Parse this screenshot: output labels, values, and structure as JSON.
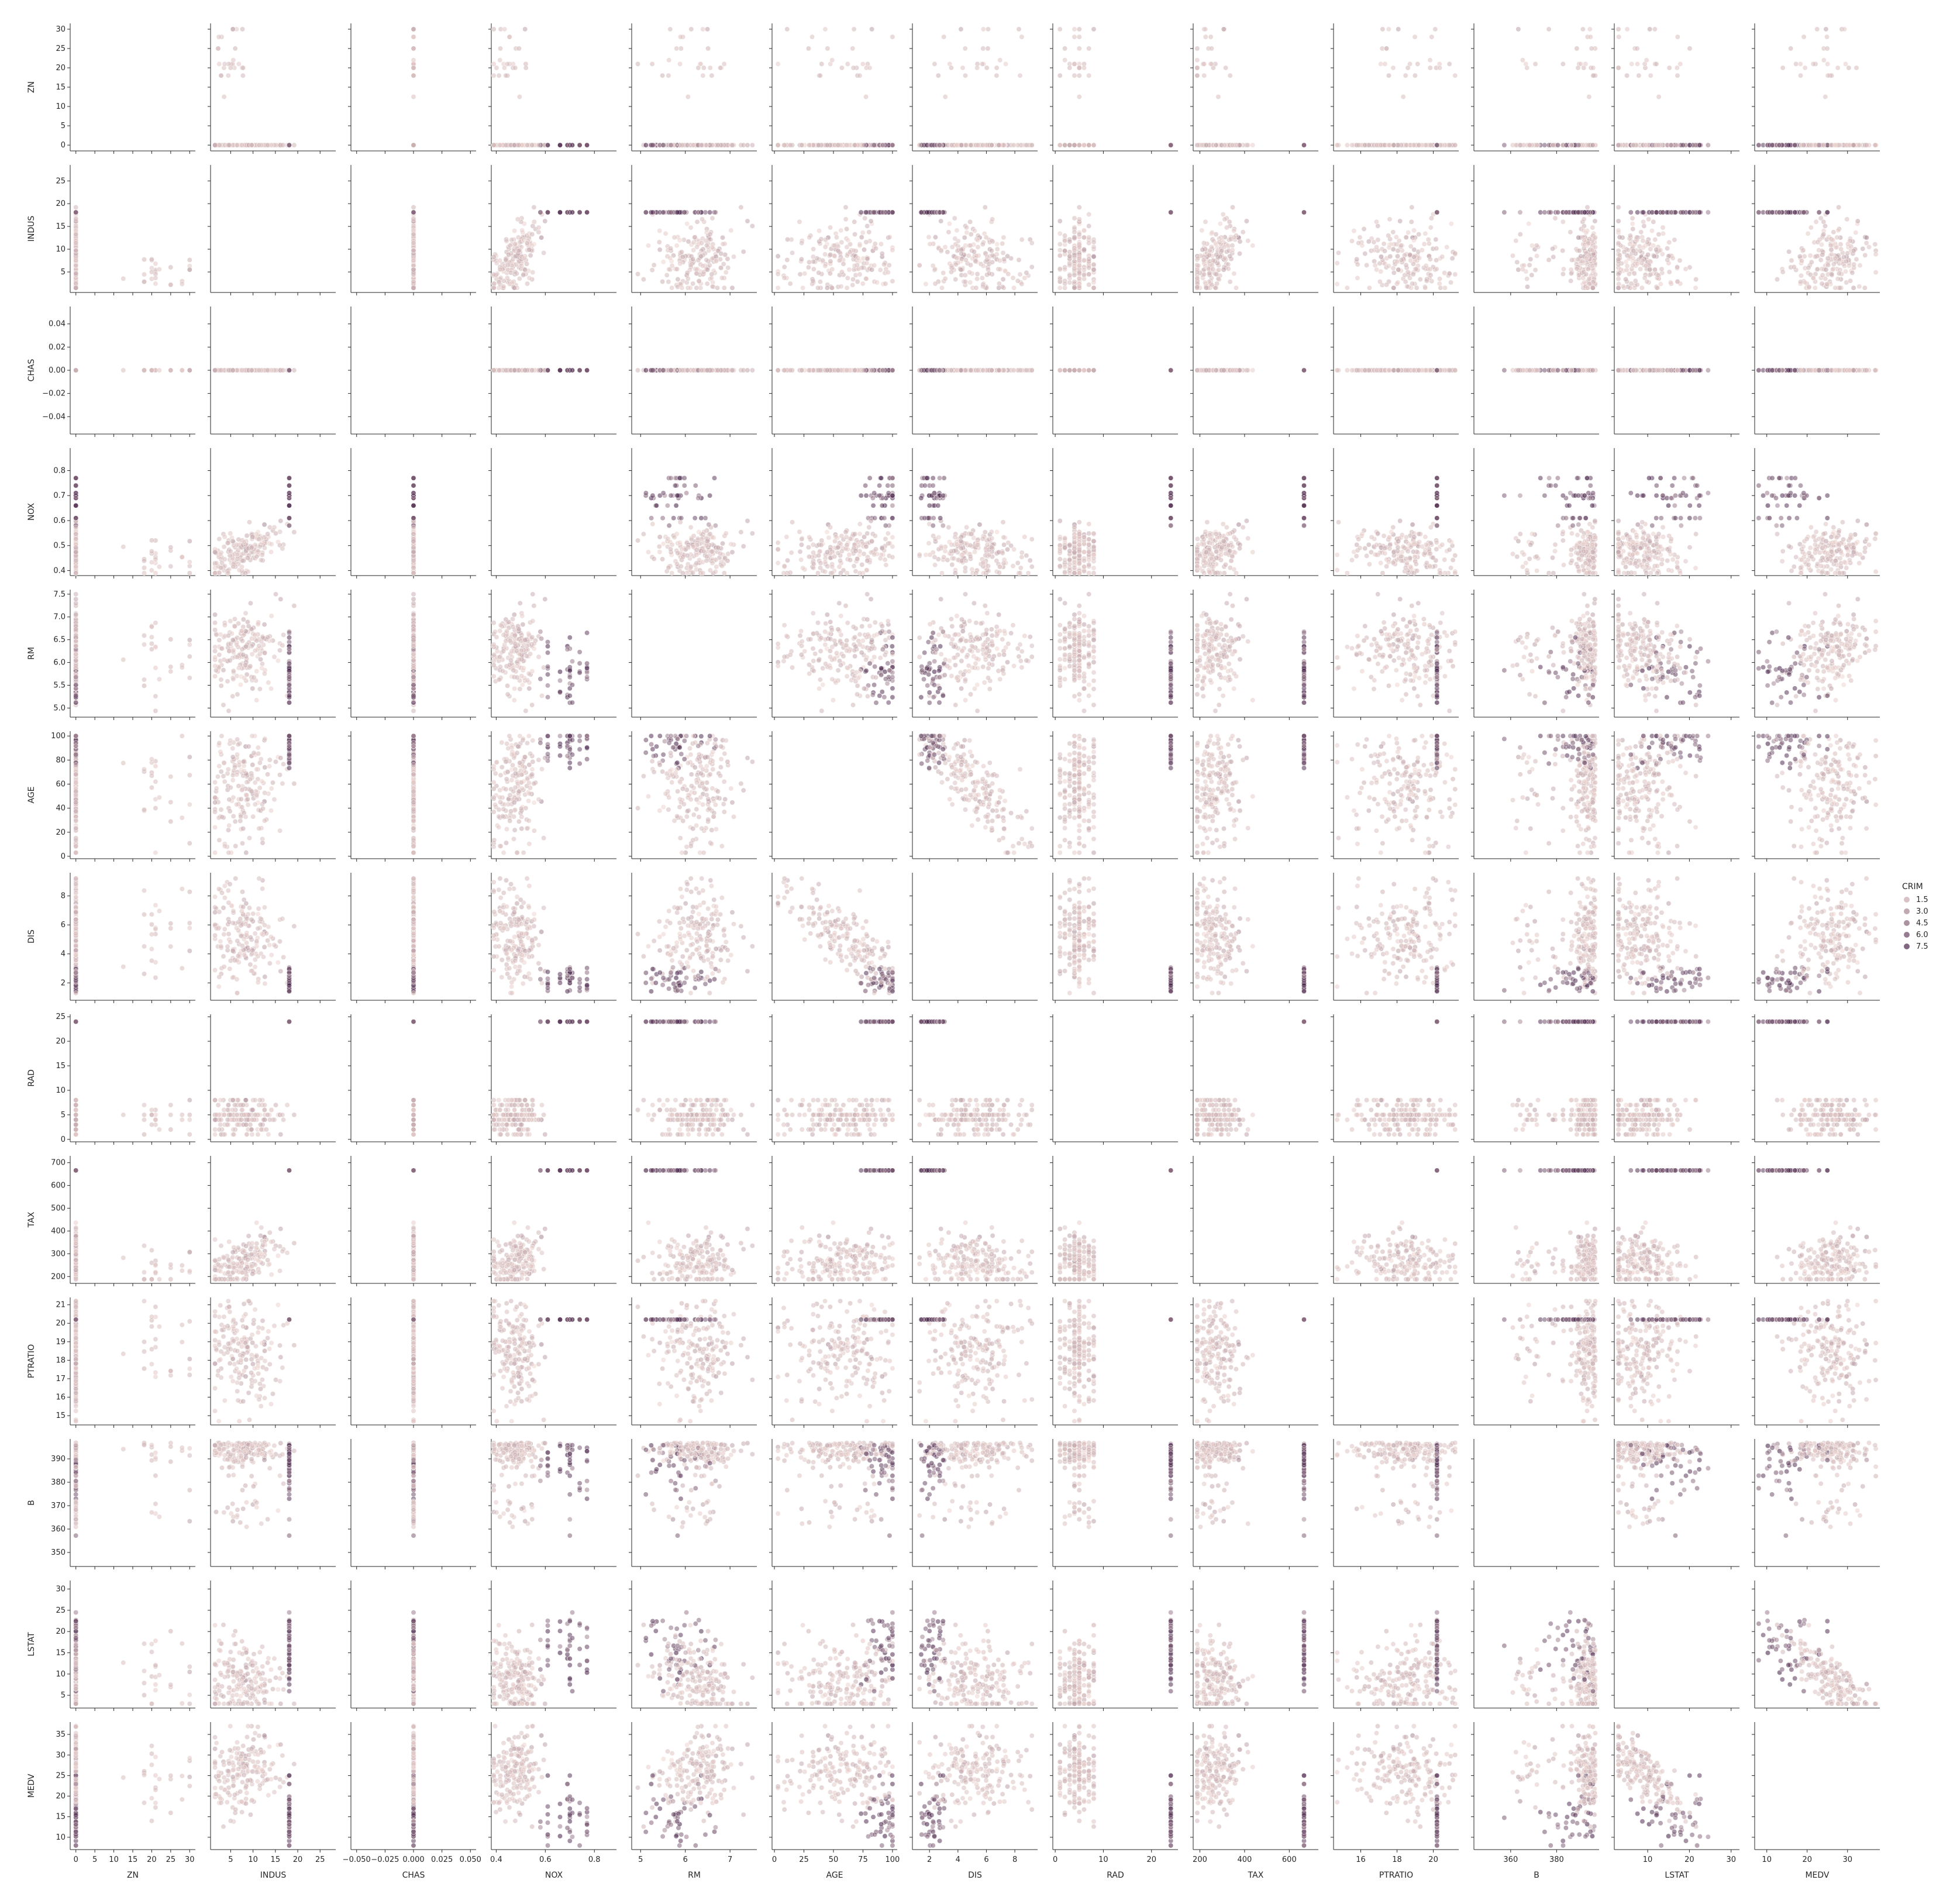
{
  "chart_data": {
    "type": "scatter",
    "kind": "pairplot",
    "title": "",
    "variables": [
      "ZN",
      "INDUS",
      "CHAS",
      "NOX",
      "RM",
      "AGE",
      "DIS",
      "RAD",
      "TAX",
      "PTRATIO",
      "B",
      "LSTAT",
      "MEDV"
    ],
    "diagonal": "empty",
    "hue": {
      "name": "CRIM",
      "legend_levels": [
        "1.5",
        "3.0",
        "4.5",
        "6.0",
        "7.5"
      ],
      "legend_values": [
        1.5,
        3.0,
        4.5,
        6.0,
        7.5
      ],
      "range": [
        0,
        9
      ],
      "color_low": "#f1d8d2",
      "color_high": "#3d1a42",
      "legend_placement": "right"
    },
    "axes": {
      "ZN": {
        "lim": [
          -1.5,
          31.5
        ],
        "ticks": [
          0,
          5,
          10,
          15,
          20,
          25,
          30
        ],
        "tick_labels": [
          "0",
          "5",
          "10",
          "15",
          "20",
          "25",
          "30"
        ]
      },
      "INDUS": {
        "lim": [
          0.5,
          28.5
        ],
        "ticks": [
          5,
          10,
          15,
          20,
          25
        ],
        "tick_labels": [
          "5",
          "10",
          "15",
          "20",
          "25"
        ]
      },
      "CHAS": {
        "lim": [
          -0.055,
          0.055
        ],
        "ticks": [
          -0.05,
          -0.025,
          0,
          0.025,
          0.05
        ],
        "y_ticks": [
          -0.04,
          -0.02,
          0,
          0.02,
          0.04
        ],
        "tick_labels": [
          "−0.050",
          "−0.025",
          "0.000",
          "0.025",
          "0.050"
        ],
        "y_tick_labels": [
          "−0.04",
          "−0.02",
          "0.00",
          "0.02",
          "0.04"
        ]
      },
      "NOX": {
        "lim": [
          0.38,
          0.89
        ],
        "ticks": [
          0.4,
          0.6,
          0.8
        ],
        "y_ticks": [
          0.4,
          0.5,
          0.6,
          0.7,
          0.8
        ],
        "tick_labels": [
          "0.4",
          "0.6",
          "0.8"
        ],
        "y_tick_labels": [
          "0.4",
          "0.5",
          "0.6",
          "0.7",
          "0.8"
        ]
      },
      "RM": {
        "lim": [
          4.8,
          7.6
        ],
        "ticks": [
          5,
          6,
          7
        ],
        "y_ticks": [
          5.0,
          5.5,
          6.0,
          6.5,
          7.0,
          7.5
        ],
        "tick_labels": [
          "5",
          "6",
          "7"
        ],
        "y_tick_labels": [
          "5.0",
          "5.5",
          "6.0",
          "6.5",
          "7.0",
          "7.5"
        ]
      },
      "AGE": {
        "lim": [
          -2,
          104
        ],
        "ticks": [
          0,
          25,
          50,
          75,
          100
        ],
        "y_ticks": [
          0,
          20,
          40,
          60,
          80,
          100
        ],
        "tick_labels": [
          "0",
          "25",
          "50",
          "75",
          "100"
        ],
        "y_tick_labels": [
          "0",
          "20",
          "40",
          "60",
          "80",
          "100"
        ]
      },
      "DIS": {
        "lim": [
          0.8,
          9.6
        ],
        "ticks": [
          2,
          4,
          6,
          8
        ],
        "tick_labels": [
          "2",
          "4",
          "6",
          "8"
        ]
      },
      "RAD": {
        "lim": [
          -0.5,
          25.5
        ],
        "ticks": [
          0,
          10,
          20
        ],
        "y_ticks": [
          0,
          5,
          10,
          15,
          20,
          25
        ],
        "tick_labels": [
          "0",
          "10",
          "20"
        ],
        "y_tick_labels": [
          "0",
          "5",
          "10",
          "15",
          "20",
          "25"
        ]
      },
      "TAX": {
        "lim": [
          170,
          730
        ],
        "ticks": [
          200,
          400,
          600
        ],
        "y_ticks": [
          200,
          300,
          400,
          500,
          600,
          700
        ],
        "tick_labels": [
          "200",
          "400",
          "600"
        ],
        "y_tick_labels": [
          "200",
          "300",
          "400",
          "500",
          "600",
          "700"
        ]
      },
      "PTRATIO": {
        "lim": [
          14.5,
          21.4
        ],
        "ticks": [
          16,
          18,
          20
        ],
        "y_ticks": [
          15,
          16,
          17,
          18,
          19,
          20,
          21
        ],
        "tick_labels": [
          "16",
          "18",
          "20"
        ],
        "y_tick_labels": [
          "15",
          "16",
          "17",
          "18",
          "19",
          "20",
          "21"
        ]
      },
      "B": {
        "lim": [
          344,
          398.5
        ],
        "ticks": [
          360,
          380
        ],
        "y_ticks": [
          350,
          360,
          370,
          380,
          390
        ],
        "tick_labels": [
          "360",
          "380"
        ],
        "y_tick_labels": [
          "350",
          "360",
          "370",
          "380",
          "390"
        ]
      },
      "LSTAT": {
        "lim": [
          2,
          32
        ],
        "ticks": [
          10,
          20,
          30
        ],
        "y_ticks": [
          5,
          10,
          15,
          20,
          25,
          30
        ],
        "tick_labels": [
          "10",
          "20",
          "30"
        ],
        "y_tick_labels": [
          "5",
          "10",
          "15",
          "20",
          "25",
          "30"
        ]
      },
      "MEDV": {
        "lim": [
          7,
          38
        ],
        "ticks": [
          10,
          20,
          30
        ],
        "y_ticks": [
          10,
          15,
          20,
          25,
          30,
          35
        ],
        "tick_labels": [
          "10",
          "20",
          "30"
        ],
        "y_tick_labels": [
          "10",
          "15",
          "20",
          "25",
          "30",
          "35"
        ]
      }
    },
    "grid": false,
    "style": {
      "marker_opacity": 0.55,
      "background": "#ffffff"
    }
  }
}
